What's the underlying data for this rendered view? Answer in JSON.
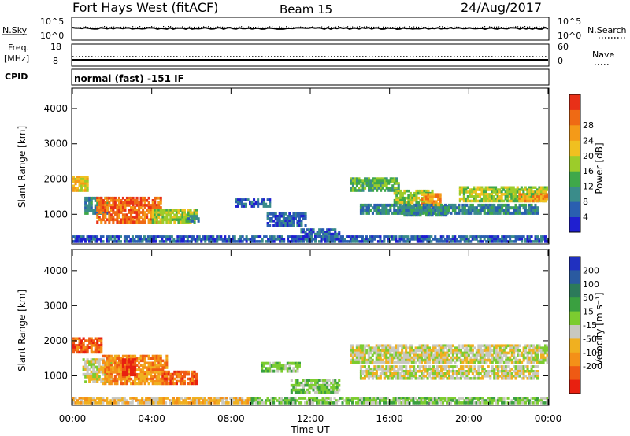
{
  "header": {
    "title": "Fort Hays West (fitACF)",
    "beam": "Beam 15",
    "date": "24/Aug/2017"
  },
  "summary_panels": {
    "nsky": {
      "label": "N.Sky",
      "tick_top": "10^5",
      "tick_bottom": "10^0"
    },
    "nsearch": {
      "label": "N.Search",
      "tick_top": "10^5",
      "tick_bottom": "10^0"
    },
    "freq": {
      "label_line1": "Freq.",
      "label_line2": "[MHz]",
      "tick_top": "18",
      "tick_bottom": "8"
    },
    "nave": {
      "label": "Nave",
      "tick_top": "60",
      "tick_bottom": "0"
    },
    "cpid": {
      "label": "CPID",
      "value": "normal (fast) -151 IF"
    }
  },
  "colors": {
    "frame": "#000000",
    "low_range_band": "#6a8fb0",
    "ground_scatter": "#c8c8c0"
  },
  "chart_data": [
    {
      "type": "heatmap",
      "panel": "power",
      "ylabel": "Slant Range [km]",
      "xlabel": "",
      "x_ticks": [
        "00:00",
        "04:00",
        "08:00",
        "12:00",
        "16:00",
        "20:00",
        "00:00"
      ],
      "y_ticks": [
        "1000",
        "2000",
        "3000",
        "4000"
      ],
      "xlim_hours": [
        0,
        24
      ],
      "ylim_km": [
        180,
        4580
      ],
      "colorbar": {
        "label": "Power [dB]",
        "ticks": [
          "4",
          "8",
          "12",
          "16",
          "20",
          "24",
          "28"
        ],
        "colors": [
          "#1f1fd0",
          "#2a5fb0",
          "#3a8c8a",
          "#3fa84a",
          "#9ccc2a",
          "#f0c020",
          "#f49a18",
          "#ef6a14",
          "#e83018"
        ]
      },
      "patches": [
        {
          "t0": 0.0,
          "t1": 0.8,
          "r0": 1650,
          "r1": 2100,
          "level": 5
        },
        {
          "t0": 0.6,
          "t1": 1.8,
          "r0": 1000,
          "r1": 1500,
          "level": 2
        },
        {
          "t0": 1.2,
          "t1": 4.5,
          "r0": 750,
          "r1": 1500,
          "level": 7
        },
        {
          "t0": 4.0,
          "t1": 6.3,
          "r0": 750,
          "r1": 1150,
          "level": 4
        },
        {
          "t0": 5.7,
          "t1": 6.4,
          "r0": 780,
          "r1": 980,
          "level": 2
        },
        {
          "t0": 8.2,
          "t1": 10.0,
          "r0": 1200,
          "r1": 1450,
          "level": 1
        },
        {
          "t0": 9.8,
          "t1": 11.8,
          "r0": 650,
          "r1": 1050,
          "level": 1
        },
        {
          "t0": 11.5,
          "t1": 13.5,
          "r0": 350,
          "r1": 600,
          "level": 1
        },
        {
          "t0": 14.0,
          "t1": 16.5,
          "r0": 1650,
          "r1": 2050,
          "level": 3
        },
        {
          "t0": 16.2,
          "t1": 18.2,
          "r0": 1300,
          "r1": 1700,
          "level": 4
        },
        {
          "t0": 16.5,
          "t1": 19.0,
          "r0": 950,
          "r1": 1250,
          "level": 2
        },
        {
          "t0": 17.6,
          "t1": 18.6,
          "r0": 1200,
          "r1": 1600,
          "level": 6
        },
        {
          "t0": 19.5,
          "t1": 24.0,
          "r0": 1350,
          "r1": 1800,
          "level": 4
        },
        {
          "t0": 22.5,
          "t1": 24.0,
          "r0": 1350,
          "r1": 1600,
          "level": 6
        },
        {
          "t0": 14.5,
          "t1": 23.5,
          "r0": 1000,
          "r1": 1300,
          "level": 2
        },
        {
          "t0": 0.0,
          "t1": 24.0,
          "r0": 200,
          "r1": 400,
          "level": 1
        }
      ]
    },
    {
      "type": "heatmap",
      "panel": "velocity",
      "ylabel": "Slant Range [km]",
      "xlabel": "Time UT",
      "x_ticks": [
        "00:00",
        "04:00",
        "08:00",
        "12:00",
        "16:00",
        "20:00",
        "00:00"
      ],
      "y_ticks": [
        "1000",
        "2000",
        "3000",
        "4000"
      ],
      "xlim_hours": [
        0,
        24
      ],
      "ylim_km": [
        180,
        4580
      ],
      "colorbar": {
        "label": "Velocity [m s⁻¹]",
        "ticks": [
          "200",
          "100",
          "50",
          "15",
          "-15",
          "-50",
          "-100",
          "-200"
        ],
        "colors": [
          "#2030c0",
          "#2a5aa0",
          "#2c7a5a",
          "#3aa040",
          "#7ccc30",
          "#c8c8c0",
          "#f0b020",
          "#f49018",
          "#ef5a14",
          "#e82010"
        ]
      },
      "patches": [
        {
          "t0": 0.0,
          "t1": 1.5,
          "r0": 1650,
          "r1": 2100,
          "level": 8
        },
        {
          "t0": 0.5,
          "t1": 2.0,
          "r0": 800,
          "r1": 1500,
          "level": 5
        },
        {
          "t0": 1.5,
          "t1": 4.8,
          "r0": 750,
          "r1": 1600,
          "level": 7
        },
        {
          "t0": 2.5,
          "t1": 3.2,
          "r0": 1000,
          "r1": 1500,
          "level": 9
        },
        {
          "t0": 4.5,
          "t1": 6.3,
          "r0": 750,
          "r1": 1150,
          "level": 8
        },
        {
          "t0": 9.5,
          "t1": 11.5,
          "r0": 1100,
          "r1": 1400,
          "level": 4
        },
        {
          "t0": 11.0,
          "t1": 13.5,
          "r0": 500,
          "r1": 900,
          "level": 4
        },
        {
          "t0": 14.0,
          "t1": 24.0,
          "r0": 1350,
          "r1": 1900,
          "level": 5
        },
        {
          "t0": 14.5,
          "t1": 23.5,
          "r0": 900,
          "r1": 1300,
          "level": 5
        },
        {
          "t0": 0.0,
          "t1": 9.0,
          "r0": 200,
          "r1": 400,
          "level": 6
        },
        {
          "t0": 9.0,
          "t1": 24.0,
          "r0": 200,
          "r1": 400,
          "level": 4
        }
      ]
    }
  ]
}
